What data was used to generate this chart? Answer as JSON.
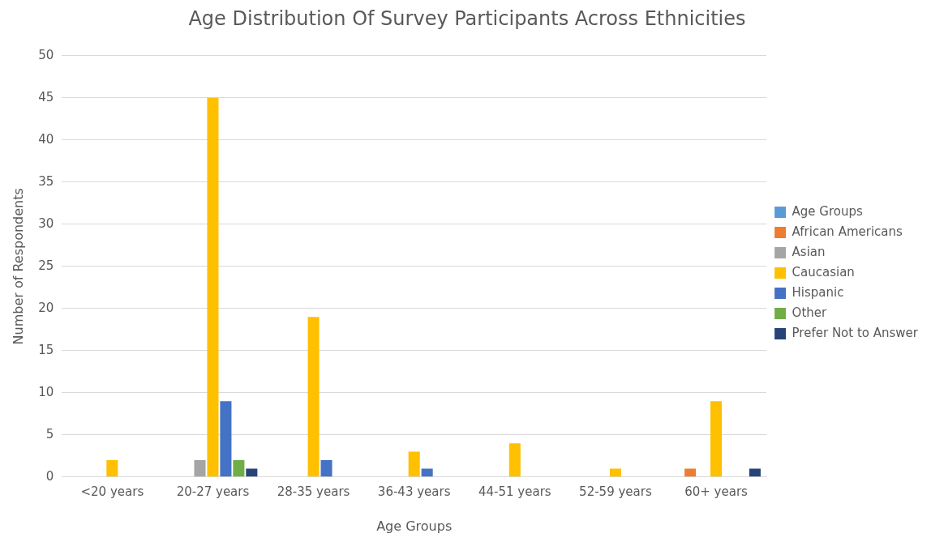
{
  "chart_data": {
    "type": "bar",
    "title": "Age Distribution Of Survey Participants Across Ethnicities",
    "xlabel": "Age Groups",
    "ylabel": "Number of Respondents",
    "categories": [
      "<20 years",
      "20-27 years",
      "28-35 years",
      "36-43 years",
      "44-51 years",
      "52-59 years",
      "60+ years"
    ],
    "series": [
      {
        "name": "Age Groups",
        "color": "#5b9bd5",
        "values": [
          null,
          null,
          null,
          null,
          null,
          null,
          null
        ]
      },
      {
        "name": "African Americans",
        "color": "#ed7d31",
        "values": [
          null,
          null,
          null,
          null,
          null,
          null,
          1
        ]
      },
      {
        "name": "Asian",
        "color": "#a5a5a5",
        "values": [
          null,
          2,
          null,
          null,
          null,
          null,
          null
        ]
      },
      {
        "name": "Caucasian",
        "color": "#ffc000",
        "values": [
          2,
          45,
          19,
          3,
          4,
          1,
          9
        ]
      },
      {
        "name": "Hispanic",
        "color": "#4472c4",
        "values": [
          null,
          9,
          2,
          1,
          null,
          null,
          null
        ]
      },
      {
        "name": "Other",
        "color": "#70ad47",
        "values": [
          null,
          2,
          null,
          null,
          null,
          null,
          null
        ]
      },
      {
        "name": "Prefer Not to Answer",
        "color": "#264478",
        "values": [
          null,
          1,
          null,
          null,
          null,
          null,
          1
        ]
      }
    ],
    "ylim": [
      0,
      50
    ],
    "yticks": [
      0,
      5,
      10,
      15,
      20,
      25,
      30,
      35,
      40,
      45,
      50
    ],
    "grid": "y",
    "legend": "right"
  }
}
